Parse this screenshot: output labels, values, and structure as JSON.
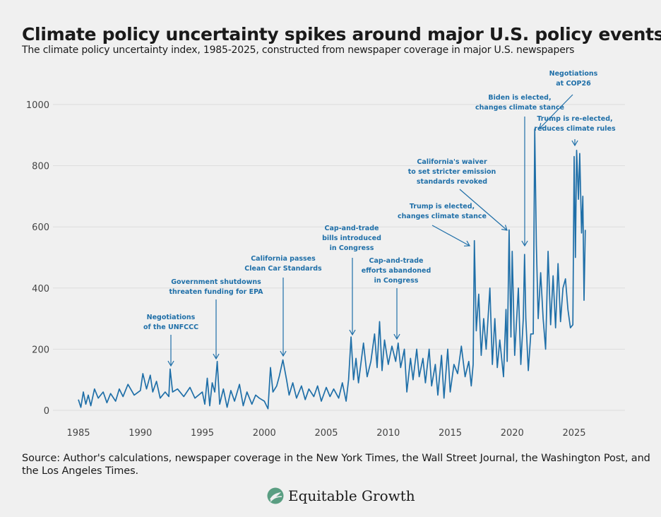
{
  "title": "Climate policy uncertainty spikes around major U.S. policy events",
  "subtitle": "The climate policy uncertainty index, 1985-2025, constructed from newspaper coverage in major U.S. newspapers",
  "source": "Source: Author's calculations, newspaper coverage in the New York Times, the Wall Street Journal, the Washington Post, and the Los Angeles Times.",
  "logo": {
    "text": "Equitable Growth",
    "icon": "equitable-growth-leaf-icon"
  },
  "colors": {
    "line": "#1f6fa8",
    "annotation": "#1f6fa8",
    "grid": "#dcdcdc",
    "background": "#f0f0f0"
  },
  "chart_data": {
    "type": "line",
    "title": "",
    "xlabel": "",
    "ylabel": "",
    "xlim": [
      1984,
      2029
    ],
    "ylim": [
      0,
      1080
    ],
    "xticks": [
      1985,
      1990,
      1995,
      2000,
      2005,
      2010,
      2015,
      2020,
      2025
    ],
    "yticks": [
      0,
      200,
      400,
      600,
      800,
      1000
    ],
    "grid": "horizontal",
    "series": [
      {
        "x": [
          1985,
          1985.2,
          1985.4,
          1985.6,
          1985.8,
          1986,
          1986.3,
          1986.6,
          1987,
          1987.3,
          1987.6,
          1988,
          1988.3,
          1988.6,
          1989,
          1989.5,
          1990,
          1990.2,
          1990.5,
          1990.8,
          1991,
          1991.3,
          1991.6,
          1992,
          1992.3,
          1992.4,
          1992.6,
          1993,
          1993.5,
          1994,
          1994.4,
          1995,
          1995.2,
          1995.4,
          1995.6,
          1995.8,
          1996,
          1996.2,
          1996.4,
          1996.7,
          1997,
          1997.3,
          1997.6,
          1998,
          1998.3,
          1998.6,
          1999,
          1999.3,
          1999.6,
          2000,
          2000.3,
          2000.5,
          2000.7,
          2001,
          2001.2,
          2001.5,
          2001.8,
          2002,
          2002.3,
          2002.6,
          2003,
          2003.3,
          2003.6,
          2004,
          2004.3,
          2004.6,
          2005,
          2005.3,
          2005.6,
          2006,
          2006.3,
          2006.6,
          2006.8,
          2007,
          2007.2,
          2007.4,
          2007.6,
          2008,
          2008.3,
          2008.6,
          2008.9,
          2009.1,
          2009.3,
          2009.5,
          2009.7,
          2010,
          2010.3,
          2010.6,
          2010.8,
          2011,
          2011.3,
          2011.5,
          2011.8,
          2012,
          2012.3,
          2012.5,
          2012.8,
          2013,
          2013.3,
          2013.5,
          2013.8,
          2014,
          2014.3,
          2014.5,
          2014.8,
          2015,
          2015.3,
          2015.6,
          2015.9,
          2016.2,
          2016.5,
          2016.7,
          2016.85,
          2016.95,
          2017.1,
          2017.3,
          2017.5,
          2017.7,
          2017.9,
          2018.2,
          2018.4,
          2018.6,
          2018.8,
          2019,
          2019.3,
          2019.5,
          2019.6,
          2019.75,
          2019.9,
          2020,
          2020.2,
          2020.5,
          2020.7,
          2020.9,
          2021,
          2021.1,
          2021.3,
          2021.5,
          2021.7,
          2021.82,
          2021.95,
          2022.1,
          2022.3,
          2022.5,
          2022.7,
          2022.9,
          2023.1,
          2023.3,
          2023.5,
          2023.7,
          2023.9,
          2024.1,
          2024.3,
          2024.5,
          2024.7,
          2024.9,
          2025,
          2025.1,
          2025.2,
          2025.35,
          2025.45,
          2025.6,
          2025.7,
          2025.8,
          2025.9
        ],
        "values": [
          35,
          10,
          60,
          20,
          50,
          15,
          70,
          40,
          60,
          25,
          55,
          30,
          70,
          45,
          85,
          50,
          65,
          120,
          70,
          115,
          60,
          95,
          40,
          60,
          45,
          135,
          60,
          70,
          45,
          75,
          40,
          60,
          20,
          105,
          15,
          90,
          60,
          160,
          20,
          70,
          10,
          65,
          30,
          85,
          15,
          60,
          20,
          50,
          40,
          30,
          5,
          140,
          60,
          80,
          110,
          165,
          100,
          50,
          90,
          40,
          80,
          35,
          70,
          45,
          80,
          30,
          75,
          45,
          70,
          40,
          90,
          30,
          100,
          240,
          100,
          170,
          90,
          220,
          110,
          160,
          250,
          140,
          290,
          130,
          230,
          150,
          210,
          160,
          220,
          140,
          200,
          60,
          170,
          100,
          200,
          110,
          170,
          90,
          200,
          80,
          150,
          50,
          180,
          40,
          200,
          60,
          150,
          120,
          210,
          110,
          160,
          80,
          150,
          555,
          260,
          380,
          180,
          300,
          200,
          400,
          150,
          300,
          140,
          230,
          110,
          330,
          160,
          590,
          240,
          520,
          180,
          400,
          150,
          300,
          510,
          300,
          130,
          250,
          250,
          920,
          540,
          300,
          450,
          300,
          200,
          520,
          280,
          440,
          270,
          480,
          290,
          400,
          430,
          330,
          270,
          280,
          830,
          500,
          850,
          690,
          840,
          580,
          700,
          360,
          590
        ]
      }
    ],
    "annotations": [
      {
        "lines": [
          "Negotiations",
          "of the UNFCCC"
        ],
        "x": 1992.4,
        "y": 135
      },
      {
        "lines": [
          "Government shutdowns",
          "threaten funding for EPA"
        ],
        "x": 1996.2,
        "y": 160
      },
      {
        "lines": [
          "California passes",
          "Clean Car Standards"
        ],
        "x": 2001.5,
        "y": 165
      },
      {
        "lines": [
          "Cap-and-trade",
          "bills introduced",
          "in Congress"
        ],
        "x": 2007,
        "y": 240
      },
      {
        "lines": [
          "Cap-and-trade",
          "efforts abandoned",
          "in Congress"
        ],
        "x": 2010.6,
        "y": 225
      },
      {
        "lines": [
          "Trump is elected,",
          "changes climate stance"
        ],
        "x": 2016.95,
        "y": 555
      },
      {
        "lines": [
          "California's waiver",
          "to set stricter emission",
          "standards revoked"
        ],
        "x": 2019.75,
        "y": 590
      },
      {
        "lines": [
          "Biden is elected,",
          "changes climate stance"
        ],
        "x": 2021,
        "y": 540
      },
      {
        "lines": [
          "Negotiations",
          "at COP26"
        ],
        "x": 2021.82,
        "y": 920
      },
      {
        "lines": [
          "Trump is re-elected,",
          "reduces climate rules"
        ],
        "x": 2025.2,
        "y": 860
      }
    ]
  }
}
